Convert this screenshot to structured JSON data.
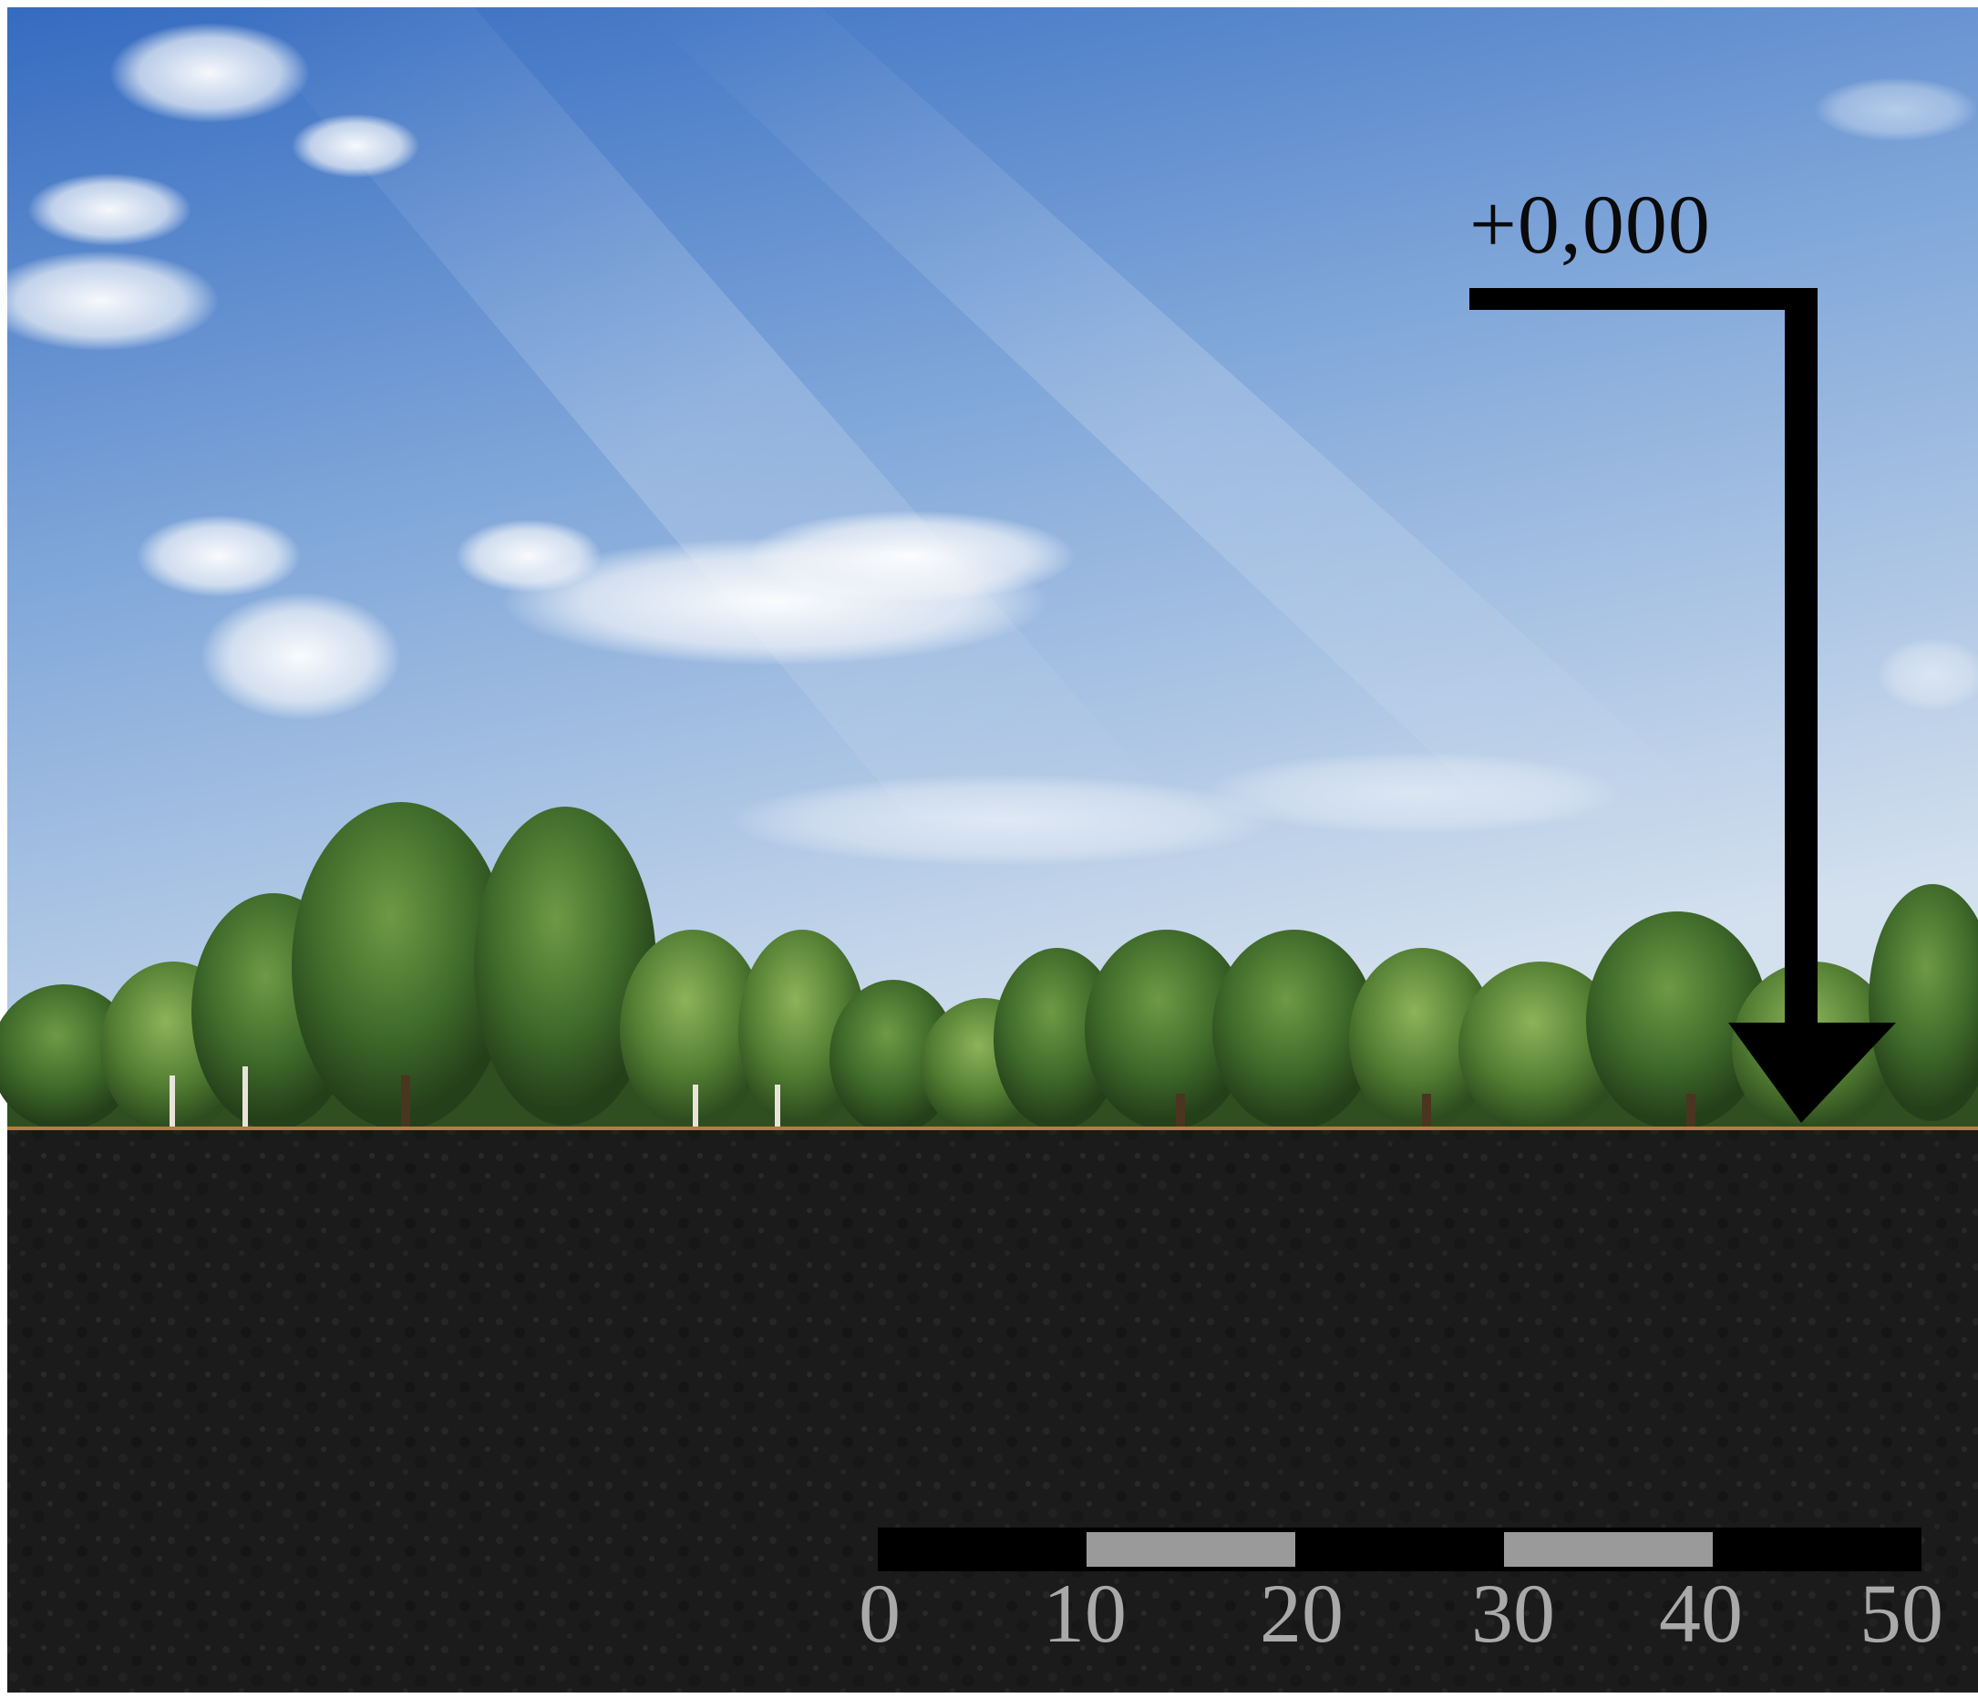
{
  "elevation_marker": {
    "label": "+0,000"
  },
  "scale_bar": {
    "ticks": [
      "0",
      "10",
      "20",
      "30",
      "40",
      "50"
    ]
  },
  "colors": {
    "sky_top": "#3f73c4",
    "sky_horizon": "#c9d9ea",
    "soil": "#1c1c1c",
    "foliage": "#3f6a2a",
    "scale_dark": "#000000",
    "scale_light": "#9a9a9a",
    "scale_text": "#a9a9a9"
  }
}
